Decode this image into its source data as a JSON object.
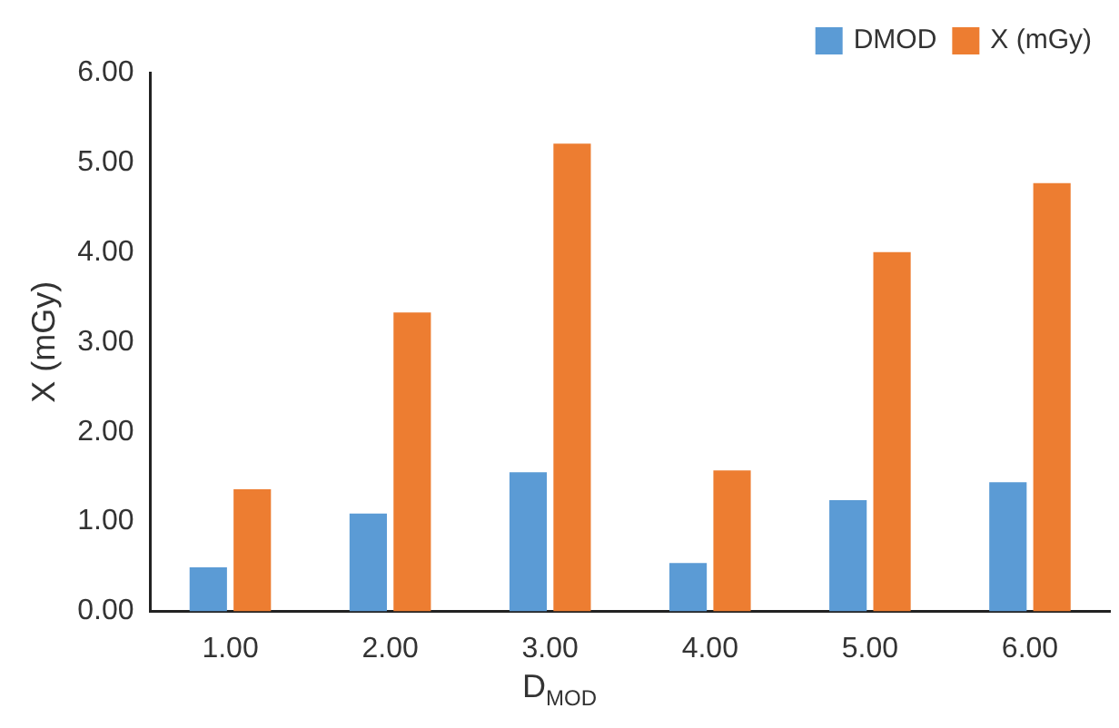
{
  "chart_data": {
    "type": "bar",
    "xlabel": "D$_{MOD}$",
    "ylabel": "X (mGy)",
    "categories": [
      "1.00",
      "2.00",
      "3.00",
      "4.00",
      "5.00",
      "6.00"
    ],
    "series": [
      {
        "name": "DMOD",
        "color": "#5b9bd5",
        "values": [
          0.49,
          1.09,
          1.55,
          0.54,
          1.24,
          1.44
        ]
      },
      {
        "name": "X (mGy)",
        "color": "#ed7d31",
        "values": [
          1.36,
          3.33,
          5.21,
          1.57,
          4.0,
          4.77
        ]
      }
    ],
    "ylim": [
      0,
      6
    ],
    "yticks": [
      {
        "value": 0,
        "label": "0.00"
      },
      {
        "value": 1,
        "label": "1.00"
      },
      {
        "value": 2,
        "label": "2.00"
      },
      {
        "value": 3,
        "label": "3.00"
      },
      {
        "value": 4,
        "label": "4.00"
      },
      {
        "value": 5,
        "label": "5.00"
      },
      {
        "value": 6,
        "label": "6.00"
      }
    ],
    "grid": false,
    "legend": "top right"
  }
}
